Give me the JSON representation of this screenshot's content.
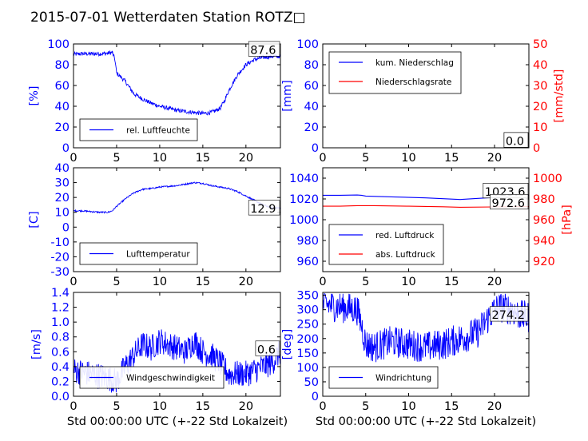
{
  "figure_title": "2015-07-01 Wetterdaten Station ROTZ□",
  "xlabel_common": "Std 00:00:00 UTC (+-22 Std Lokalzeit)",
  "colors": {
    "left": "#0000ff",
    "right": "#ff0000",
    "axes": "#000000"
  },
  "chart_data": [
    {
      "id": "humidity",
      "type": "line",
      "ylabel": "[%]",
      "ylim": [
        0,
        100
      ],
      "yticks": [
        0,
        20,
        40,
        60,
        80,
        100
      ],
      "xlim": [
        0,
        24
      ],
      "xticks": [
        0,
        5,
        10,
        15,
        20
      ],
      "last_value_label": "87.6",
      "legend": {
        "placement": "lower-left",
        "entries": [
          "rel. Luftfeuchte"
        ]
      },
      "series": [
        {
          "name": "rel. Luftfeuchte",
          "color": "#0000ff",
          "noise": 2,
          "x": [
            0,
            1,
            2,
            3,
            4,
            4.5,
            4.8,
            5,
            6,
            7,
            8,
            9,
            10,
            11,
            12,
            13,
            14,
            15,
            16,
            17,
            17.5,
            18,
            19,
            20,
            21,
            22,
            23,
            24
          ],
          "y": [
            90,
            90.5,
            90.5,
            90.5,
            91,
            92,
            85,
            72,
            64,
            52,
            47,
            43,
            40,
            38,
            36,
            35,
            34,
            33,
            34,
            38,
            45,
            55,
            70,
            80,
            85,
            87,
            88,
            88
          ]
        }
      ]
    },
    {
      "id": "precipitation",
      "type": "line",
      "ylabel": "[mm]",
      "ylim": [
        0,
        100
      ],
      "yticks": [
        0,
        20,
        40,
        60,
        80,
        100
      ],
      "ylabel_right": "[mm/std]",
      "ylim_right": [
        0,
        50
      ],
      "yticks_right": [
        0,
        10,
        20,
        30,
        40,
        50
      ],
      "xlim": [
        0,
        24
      ],
      "xticks": [
        0,
        5,
        10,
        15,
        20
      ],
      "last_value_label": "0.0",
      "last_value_label_right": "0.0",
      "legend": {
        "placement": "top-left",
        "entries": [
          "kum. Niederschlag",
          "Niederschlagsrate"
        ]
      },
      "series": [
        {
          "name": "kum. Niederschlag",
          "color": "#0000ff",
          "axis": "left",
          "x": [
            0,
            24
          ],
          "y": [
            0,
            0
          ]
        },
        {
          "name": "Niederschlagsrate",
          "color": "#ff0000",
          "axis": "right",
          "x": [
            0,
            24
          ],
          "y": [
            0,
            0
          ]
        }
      ]
    },
    {
      "id": "temperature",
      "type": "line",
      "ylabel": "[C]",
      "ylim": [
        -30,
        40
      ],
      "yticks": [
        -30,
        -20,
        -10,
        0,
        10,
        20,
        30,
        40
      ],
      "xlim": [
        0,
        24
      ],
      "xticks": [
        0,
        5,
        10,
        15,
        20
      ],
      "last_value_label": "12.9",
      "legend": {
        "placement": "lower-left",
        "entries": [
          "Lufttemperatur"
        ]
      },
      "series": [
        {
          "name": "Lufttemperatur",
          "color": "#0000ff",
          "noise": 0.5,
          "x": [
            0,
            1,
            2,
            3,
            4,
            4.5,
            5,
            6,
            7,
            8,
            9,
            10,
            11,
            12,
            13,
            14,
            15,
            16,
            17,
            18,
            19,
            20,
            21,
            22,
            23,
            24
          ],
          "y": [
            11,
            11,
            10.5,
            10,
            10,
            11,
            14,
            19,
            23,
            25.5,
            26,
            27,
            27.5,
            28,
            29,
            30,
            29.5,
            28,
            27,
            26,
            24,
            21,
            18,
            15,
            13,
            12.9
          ]
        }
      ]
    },
    {
      "id": "pressure",
      "type": "line",
      "ylabel": "",
      "ylim": [
        950,
        1050
      ],
      "yticks": [
        960,
        980,
        1000,
        1020,
        1040
      ],
      "ylabel_right": "[hPa]",
      "ylim_right": [
        910,
        1010
      ],
      "yticks_right": [
        920,
        940,
        960,
        980,
        1000
      ],
      "xlim": [
        0,
        24
      ],
      "xticks": [
        0,
        5,
        10,
        15,
        20
      ],
      "last_value_label": "1023.6",
      "last_value_label_right": "972.6",
      "legend": {
        "placement": "lower-left",
        "entries": [
          "red. Luftdruck",
          "abs. Luftdruck"
        ]
      },
      "series": [
        {
          "name": "red. Luftdruck",
          "color": "#0000ff",
          "axis": "left",
          "x": [
            0,
            2,
            4,
            4.5,
            5,
            8,
            12,
            16,
            20,
            22,
            24
          ],
          "y": [
            1023.5,
            1023.5,
            1023.8,
            1023.5,
            1022.8,
            1022,
            1021,
            1019.5,
            1021.5,
            1023,
            1023.6
          ]
        },
        {
          "name": "abs. Luftdruck",
          "color": "#ff0000",
          "axis": "right",
          "x": [
            0,
            2,
            4,
            6,
            10,
            14,
            16,
            20,
            24
          ],
          "y": [
            973,
            973,
            973.5,
            973.5,
            973,
            972.5,
            972,
            972.3,
            972.6
          ]
        }
      ]
    },
    {
      "id": "windspeed",
      "type": "line",
      "ylabel": "[m/s]",
      "ylim": [
        0,
        1.4
      ],
      "yticks": [
        0.0,
        0.2,
        0.4,
        0.6,
        0.8,
        1.0,
        1.2,
        1.4
      ],
      "xlim": [
        0,
        24
      ],
      "xticks": [
        0,
        5,
        10,
        15,
        20
      ],
      "last_value_label": "0.6",
      "legend": {
        "placement": "lower-left",
        "entries": [
          "Windgeschwindigkeit"
        ]
      },
      "series": [
        {
          "name": "Windgeschwindigkeit",
          "color": "#0000ff",
          "noise": 0.18,
          "x": [
            0,
            2,
            4,
            5,
            6,
            7,
            8,
            9,
            10,
            11,
            12,
            13,
            14,
            15,
            16,
            17,
            18,
            19,
            20,
            21,
            22,
            23,
            24
          ],
          "y": [
            0.35,
            0.3,
            0.25,
            0.2,
            0.4,
            0.55,
            0.7,
            0.65,
            0.75,
            0.7,
            0.65,
            0.6,
            0.75,
            0.6,
            0.55,
            0.45,
            0.3,
            0.3,
            0.3,
            0.35,
            0.4,
            0.45,
            0.6
          ]
        }
      ]
    },
    {
      "id": "winddirection",
      "type": "line",
      "ylabel": "[deg]",
      "ylim": [
        0,
        360
      ],
      "yticks": [
        0,
        50,
        100,
        150,
        200,
        250,
        300,
        350
      ],
      "xlim": [
        0,
        24
      ],
      "xticks": [
        0,
        5,
        10,
        15,
        20
      ],
      "last_value_label": "274.2",
      "legend": {
        "placement": "lower-left",
        "entries": [
          "Windrichtung"
        ]
      },
      "series": [
        {
          "name": "Windrichtung",
          "color": "#0000ff",
          "noise": 55,
          "x": [
            0,
            2,
            4,
            4.5,
            5,
            6,
            8,
            10,
            12,
            14,
            16,
            18,
            19,
            20,
            21,
            22,
            23,
            24
          ],
          "y": [
            320,
            310,
            300,
            250,
            180,
            170,
            190,
            180,
            170,
            180,
            200,
            220,
            260,
            300,
            310,
            300,
            280,
            274
          ]
        }
      ]
    }
  ]
}
